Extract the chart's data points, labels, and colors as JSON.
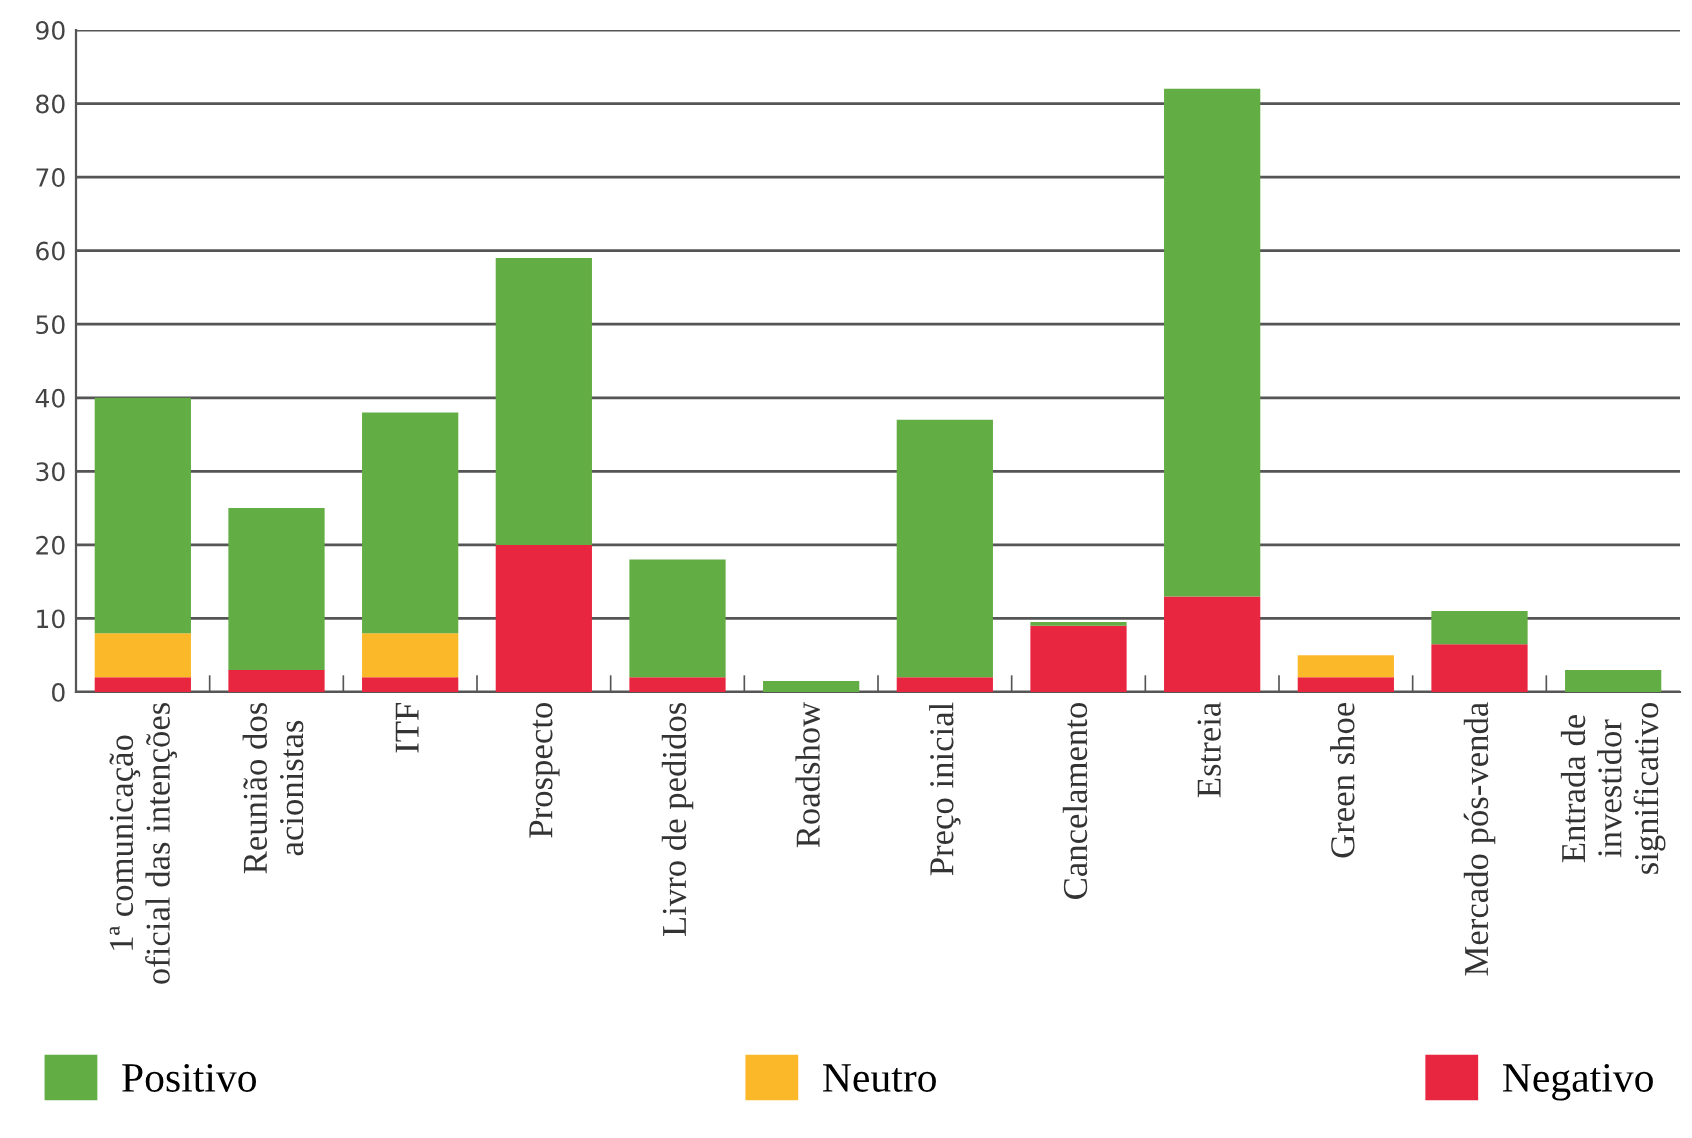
{
  "chart_data": {
    "type": "bar",
    "stacked": true,
    "categories": [
      "1ª comunicação\noficial das intenções",
      "Reunião dos\nacionistas",
      "ITF",
      "Prospecto",
      "Livro de pedidos",
      "Roadshow",
      "Preço inicial",
      "Cancelamento",
      "Estreia",
      "Green shoe",
      "Mercado pós-venda",
      "Entrada de\ninvestidor\nsignificativo"
    ],
    "series": [
      {
        "name": "Negativo",
        "color": "#e8263f",
        "values": [
          2,
          3,
          2,
          20,
          2,
          0,
          2,
          9,
          13,
          2,
          6.5,
          0
        ]
      },
      {
        "name": "Neutro",
        "color": "#fbb829",
        "values": [
          6,
          0,
          6,
          0,
          0,
          0,
          0,
          0,
          0,
          3,
          0,
          0
        ]
      },
      {
        "name": "Positivo",
        "color": "#62ad44",
        "values": [
          32,
          22,
          30,
          39,
          16,
          1.5,
          35,
          0.5,
          69,
          0,
          4.5,
          3
        ]
      }
    ],
    "ylim": [
      0,
      90
    ],
    "yticks": [
      0,
      10,
      20,
      30,
      40,
      50,
      60,
      70,
      80,
      90
    ],
    "grid": "y",
    "legend": "bottom"
  }
}
